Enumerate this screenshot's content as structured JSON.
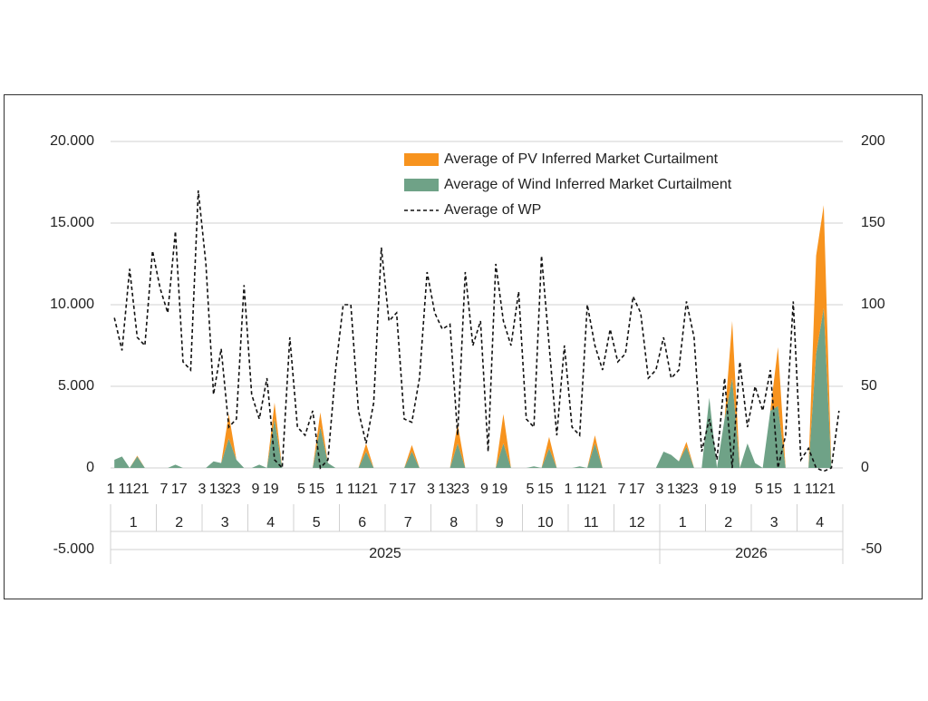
{
  "chart_data": {
    "type": "area-line",
    "years": [
      {
        "name": "2025",
        "months": [
          {
            "name": "1",
            "days": [
              "1",
              null,
              "11",
              null,
              "21",
              null
            ]
          },
          {
            "name": "2",
            "days": [
              null,
              "7",
              null,
              "17",
              null,
              null
            ]
          },
          {
            "name": "3",
            "days": [
              "3",
              null,
              "13",
              null,
              "23",
              null
            ]
          },
          {
            "name": "4",
            "days": [
              null,
              "9",
              null,
              "19",
              null,
              null
            ]
          },
          {
            "name": "5",
            "days": [
              null,
              "5",
              null,
              "15",
              null,
              null
            ]
          },
          {
            "name": "6",
            "days": [
              "1",
              null,
              "11",
              null,
              "21",
              null
            ]
          },
          {
            "name": "7",
            "days": [
              null,
              "7",
              null,
              "17",
              null,
              null
            ]
          },
          {
            "name": "8",
            "days": [
              "3",
              null,
              "13",
              null,
              "23",
              null
            ]
          },
          {
            "name": "9",
            "days": [
              null,
              "9",
              null,
              "19",
              null,
              null
            ]
          },
          {
            "name": "10",
            "days": [
              null,
              "5",
              null,
              "15",
              null,
              null
            ]
          },
          {
            "name": "11",
            "days": [
              "1",
              null,
              "11",
              null,
              "21",
              null
            ]
          },
          {
            "name": "12",
            "days": [
              null,
              "7",
              null,
              "17",
              null,
              null
            ]
          }
        ]
      },
      {
        "name": "2026",
        "months": [
          {
            "name": "1",
            "days": [
              "3",
              null,
              "13",
              null,
              "23",
              null
            ]
          },
          {
            "name": "2",
            "days": [
              null,
              "9",
              null,
              "19",
              null,
              null
            ]
          },
          {
            "name": "3",
            "days": [
              null,
              "5",
              null,
              "15",
              null,
              null
            ]
          },
          {
            "name": "4",
            "days": [
              "1",
              null,
              "11",
              null,
              "21",
              null
            ]
          }
        ]
      }
    ],
    "series": [
      {
        "name": "Average of Wind Inferred Market Curtailment",
        "color": "#6fa287",
        "kind": "area",
        "values": [
          500,
          700,
          0,
          700,
          0,
          0,
          0,
          0,
          200,
          0,
          0,
          0,
          0,
          400,
          300,
          1800,
          500,
          0,
          0,
          200,
          0,
          3000,
          0,
          0,
          0,
          0,
          0,
          2500,
          300,
          0,
          0,
          0,
          0,
          1000,
          0,
          0,
          0,
          0,
          0,
          1000,
          0,
          0,
          0,
          0,
          0,
          1500,
          0,
          0,
          0,
          0,
          0,
          1500,
          0,
          0,
          0,
          100,
          0,
          1200,
          0,
          0,
          0,
          100,
          0,
          1500,
          0,
          0,
          0,
          0,
          0,
          0,
          0,
          0,
          1000,
          800,
          400,
          1300,
          0,
          0,
          4300,
          0,
          3000,
          5500,
          0,
          1500,
          300,
          0,
          3500,
          3800,
          0,
          0,
          0,
          0,
          7000,
          9800,
          0,
          0
        ]
      },
      {
        "name": "Average of PV Inferred Market Curtailment",
        "color": "#f7931e",
        "kind": "area",
        "values": [
          0,
          0,
          0,
          50,
          0,
          0,
          0,
          0,
          0,
          0,
          0,
          0,
          0,
          0,
          0,
          1500,
          0,
          0,
          0,
          0,
          0,
          1000,
          0,
          0,
          0,
          0,
          0,
          900,
          0,
          0,
          0,
          0,
          0,
          500,
          0,
          0,
          0,
          0,
          0,
          400,
          0,
          0,
          0,
          0,
          0,
          1200,
          0,
          0,
          0,
          0,
          0,
          1800,
          0,
          0,
          0,
          0,
          0,
          700,
          0,
          0,
          0,
          0,
          0,
          500,
          0,
          0,
          0,
          0,
          0,
          0,
          0,
          0,
          0,
          0,
          0,
          300,
          0,
          0,
          0,
          0,
          0,
          3500,
          0,
          0,
          0,
          0,
          0,
          3600,
          0,
          0,
          0,
          0,
          6000,
          6300,
          0,
          0
        ]
      },
      {
        "name": "Average of WP",
        "color": "#111111",
        "kind": "line",
        "axis": "y2",
        "values": [
          92,
          72,
          122,
          80,
          75,
          133,
          110,
          95,
          145,
          65,
          60,
          170,
          125,
          45,
          73,
          25,
          30,
          112,
          45,
          30,
          55,
          5,
          0,
          80,
          25,
          20,
          35,
          0,
          5,
          60,
          100,
          100,
          35,
          15,
          40,
          135,
          90,
          95,
          30,
          28,
          55,
          120,
          95,
          85,
          88,
          20,
          120,
          75,
          90,
          10,
          125,
          90,
          75,
          108,
          30,
          25,
          130,
          75,
          20,
          75,
          25,
          20,
          100,
          75,
          60,
          85,
          65,
          70,
          105,
          95,
          55,
          60,
          80,
          55,
          60,
          102,
          80,
          10,
          30,
          5,
          55,
          0,
          65,
          25,
          50,
          35,
          60,
          0,
          20,
          102,
          5,
          12,
          0,
          -2,
          0,
          35
        ]
      }
    ],
    "legend_order": [
      1,
      0,
      2
    ],
    "ylim": [
      -5000,
      20000
    ],
    "yticks": [
      {
        "value": -5000,
        "label": "-5.000"
      },
      0,
      {
        "value": 5000,
        "label": "5.000"
      },
      {
        "value": 10000,
        "label": "10.000"
      },
      {
        "value": 15000,
        "label": "15.000"
      },
      {
        "value": 20000,
        "label": "20.000"
      }
    ],
    "y2lim": [
      -50,
      200
    ],
    "y2ticks": [
      -50,
      0,
      50,
      100,
      150,
      200
    ],
    "grid": true
  }
}
